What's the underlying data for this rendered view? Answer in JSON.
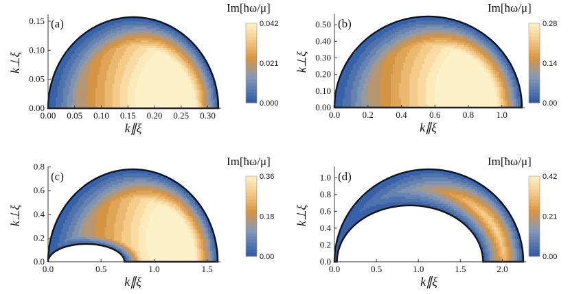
{
  "chart_data": [
    {
      "type": "contour",
      "panel_label": "(a)",
      "xlabel": "k∥ξ",
      "ylabel": "k⊥ξ",
      "colorbar_title": "Im[ħω/μ]",
      "colorbar_ticks": [
        "0.042",
        "0.021",
        "0.000"
      ],
      "colorbar_range": [
        0.0,
        0.042
      ],
      "xlim": [
        0.0,
        0.32
      ],
      "ylim": [
        0.0,
        0.157
      ],
      "xticks": [
        "0.00",
        "0.05",
        "0.10",
        "0.15",
        "0.20",
        "0.25",
        "0.30"
      ],
      "yticks": [
        "0.00",
        "0.05",
        "0.10",
        "0.15"
      ],
      "domain": {
        "outer_center": 0.16,
        "outer_radius": 0.16,
        "outer_height": 0.157,
        "inner_center": 0.0,
        "inner_radius": 0.0,
        "inner_height": 0.0
      },
      "peak_location": [
        0.215,
        0.02
      ]
    },
    {
      "type": "contour",
      "panel_label": "(b)",
      "xlabel": "k∥ξ",
      "ylabel": "k⊥ξ",
      "colorbar_title": "Im[ħω/μ]",
      "colorbar_ticks": [
        "0.28",
        "0.14",
        "0.00"
      ],
      "colorbar_range": [
        0.0,
        0.28
      ],
      "xlim": [
        0.0,
        1.12
      ],
      "ylim": [
        0.0,
        0.55
      ],
      "xticks": [
        "0.0",
        "0.2",
        "0.4",
        "0.6",
        "0.8",
        "1.0"
      ],
      "yticks": [
        "0.00",
        "0.10",
        "0.20",
        "0.30",
        "0.40",
        "0.50"
      ],
      "domain": {
        "outer_center": 0.56,
        "outer_radius": 0.56,
        "outer_height": 0.55,
        "inner_center": 0.0,
        "inner_radius": 0.0,
        "inner_height": 0.0
      },
      "peak_location": [
        0.78,
        0.1
      ]
    },
    {
      "type": "contour",
      "panel_label": "(c)",
      "xlabel": "k∥ξ",
      "ylabel": "k⊥ξ",
      "colorbar_title": "Im[ħω/μ]",
      "colorbar_ticks": [
        "0.36",
        "0.18",
        "0.00"
      ],
      "colorbar_range": [
        0.0,
        0.36
      ],
      "xlim": [
        0.0,
        1.6
      ],
      "ylim": [
        0.0,
        0.78
      ],
      "xticks": [
        "0.0",
        "0.5",
        "1.0",
        "1.5"
      ],
      "yticks": [
        "0.0",
        "0.2",
        "0.4",
        "0.6",
        "0.8"
      ],
      "domain": {
        "outer_center": 0.8,
        "outer_radius": 0.8,
        "outer_height": 0.78,
        "inner_center": 0.36,
        "inner_radius": 0.36,
        "inner_height": 0.15
      },
      "peak_location": [
        1.2,
        0.2
      ]
    },
    {
      "type": "contour",
      "panel_label": "(d)",
      "xlabel": "k∥ξ",
      "ylabel": "k⊥ξ",
      "colorbar_title": "Im[ħω/μ]",
      "colorbar_ticks": [
        "0.42",
        "0.21",
        "0.00"
      ],
      "colorbar_range": [
        0.0,
        0.42
      ],
      "xlim": [
        0.0,
        2.25
      ],
      "ylim": [
        0.0,
        1.1
      ],
      "xticks": [
        "0.0",
        "0.5",
        "1.0",
        "1.5",
        "2.0"
      ],
      "yticks": [
        "0.0",
        "0.2",
        "0.4",
        "0.6",
        "0.8",
        "1.0"
      ],
      "domain": {
        "outer_center": 1.125,
        "outer_radius": 1.125,
        "outer_height": 1.1,
        "inner_center": 0.9,
        "inner_radius": 0.87,
        "inner_height": 0.67
      },
      "peak_location": [
        1.9,
        0.35
      ]
    }
  ],
  "palette": {
    "low": "#2b5aa8",
    "mid_low": "#8a9bb5",
    "mid": "#d79440",
    "high": "#fdf1c8",
    "contour_line": "#4a4a4a"
  }
}
